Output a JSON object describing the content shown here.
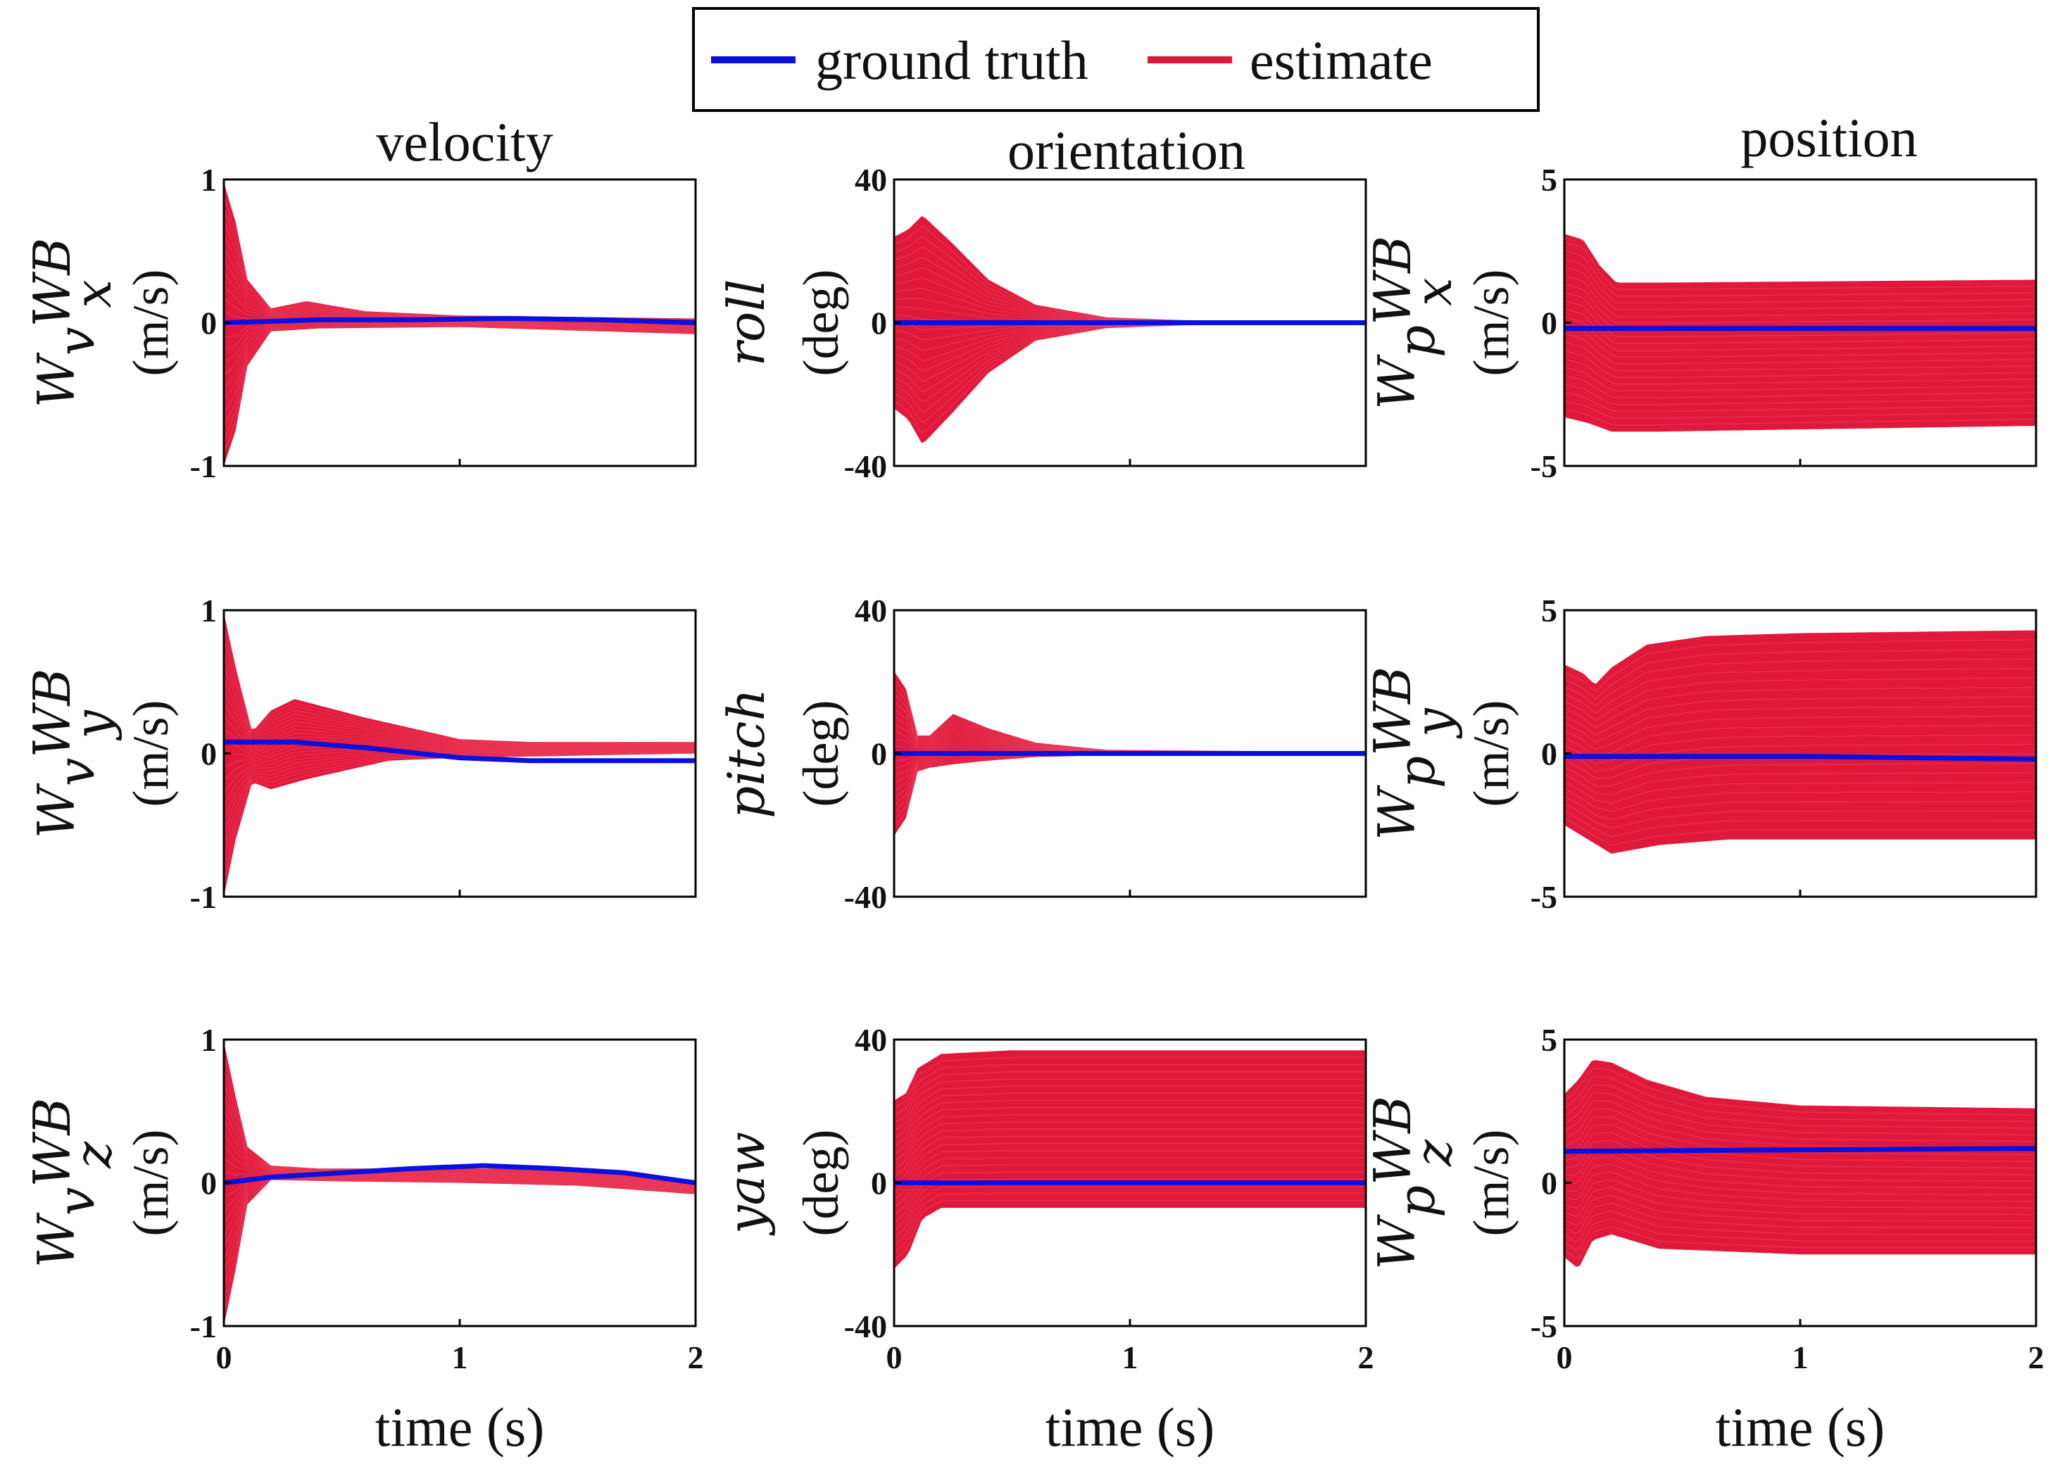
{
  "legend": {
    "ground_truth": "ground truth",
    "estimate": "estimate",
    "colors": {
      "ground_truth": "#0a10e0",
      "estimate": "#e0183c"
    }
  },
  "columns": [
    "velocity",
    "orientation",
    "position"
  ],
  "chart_data": [
    {
      "type": "line",
      "id": "vx",
      "row": 0,
      "col": 0,
      "ylabel_main": "v",
      "ylabel_sub": "x",
      "ylabel_sup": "WB",
      "ylabel_pre": "W",
      "ylabel_unit": "(m/s)",
      "xlim": [
        0,
        2
      ],
      "ylim": [
        -1,
        1
      ],
      "yticks": [
        "1",
        "0",
        "-1"
      ],
      "xticks": [],
      "truth": [
        [
          0,
          0
        ],
        [
          0.2,
          0.01
        ],
        [
          0.4,
          0.02
        ],
        [
          0.8,
          0.02
        ],
        [
          1.2,
          0.03
        ],
        [
          1.6,
          0.02
        ],
        [
          2,
          0.0
        ]
      ],
      "band": {
        "upper": [
          [
            0,
            0.98
          ],
          [
            0.05,
            0.7
          ],
          [
            0.1,
            0.3
          ],
          [
            0.2,
            0.1
          ],
          [
            0.35,
            0.15
          ],
          [
            0.6,
            0.08
          ],
          [
            1.0,
            0.05
          ],
          [
            2,
            0.03
          ]
        ],
        "lower": [
          [
            0,
            -1.0
          ],
          [
            0.05,
            -0.75
          ],
          [
            0.1,
            -0.3
          ],
          [
            0.2,
            -0.06
          ],
          [
            0.4,
            -0.04
          ],
          [
            1.0,
            -0.03
          ],
          [
            2,
            -0.08
          ]
        ]
      }
    },
    {
      "type": "line",
      "id": "roll",
      "row": 0,
      "col": 1,
      "ylabel_main": "roll",
      "ylabel_unit": "(deg)",
      "xlim": [
        0,
        2
      ],
      "ylim": [
        -40,
        40
      ],
      "yticks": [
        "40",
        "0",
        "-40"
      ],
      "xticks": [],
      "truth": [
        [
          0,
          0
        ],
        [
          1,
          0
        ],
        [
          2,
          0
        ]
      ],
      "band": {
        "upper": [
          [
            0,
            24
          ],
          [
            0.06,
            26
          ],
          [
            0.12,
            30
          ],
          [
            0.25,
            22
          ],
          [
            0.4,
            12
          ],
          [
            0.6,
            5
          ],
          [
            0.9,
            1.5
          ],
          [
            1.3,
            0.5
          ],
          [
            2,
            0.3
          ]
        ],
        "lower": [
          [
            0,
            -24
          ],
          [
            0.06,
            -27
          ],
          [
            0.12,
            -34
          ],
          [
            0.25,
            -25
          ],
          [
            0.4,
            -14
          ],
          [
            0.6,
            -5
          ],
          [
            0.9,
            -1.5
          ],
          [
            1.3,
            -0.5
          ],
          [
            2,
            -0.3
          ]
        ]
      }
    },
    {
      "type": "line",
      "id": "px",
      "row": 0,
      "col": 2,
      "ylabel_main": "p",
      "ylabel_sub": "x",
      "ylabel_sup": "WB",
      "ylabel_pre": "W",
      "ylabel_unit": "(m/s)",
      "xlim": [
        0,
        2
      ],
      "ylim": [
        -5,
        5
      ],
      "yticks": [
        "5",
        "0",
        "-5"
      ],
      "xticks": [],
      "truth": [
        [
          0,
          -0.2
        ],
        [
          1,
          -0.2
        ],
        [
          2,
          -0.2
        ]
      ],
      "band": {
        "upper": [
          [
            0,
            3.1
          ],
          [
            0.08,
            2.9
          ],
          [
            0.15,
            2.0
          ],
          [
            0.22,
            1.4
          ],
          [
            0.4,
            1.4
          ],
          [
            2,
            1.5
          ]
        ],
        "lower": [
          [
            0,
            -3.3
          ],
          [
            0.1,
            -3.5
          ],
          [
            0.2,
            -3.8
          ],
          [
            0.4,
            -3.8
          ],
          [
            2,
            -3.6
          ]
        ]
      }
    },
    {
      "type": "line",
      "id": "vy",
      "row": 1,
      "col": 0,
      "ylabel_main": "v",
      "ylabel_sub": "y",
      "ylabel_sup": "WB",
      "ylabel_pre": "W",
      "ylabel_unit": "(m/s)",
      "xlim": [
        0,
        2
      ],
      "ylim": [
        -1,
        1
      ],
      "yticks": [
        "1",
        "0",
        "-1"
      ],
      "xticks": [],
      "truth": [
        [
          0,
          0.08
        ],
        [
          0.3,
          0.08
        ],
        [
          0.6,
          0.04
        ],
        [
          1.0,
          -0.03
        ],
        [
          1.3,
          -0.05
        ],
        [
          1.6,
          -0.05
        ],
        [
          2,
          -0.05
        ]
      ],
      "band": {
        "upper": [
          [
            0,
            0.98
          ],
          [
            0.05,
            0.6
          ],
          [
            0.12,
            0.15
          ],
          [
            0.2,
            0.3
          ],
          [
            0.3,
            0.38
          ],
          [
            0.6,
            0.25
          ],
          [
            1.0,
            0.1
          ],
          [
            1.3,
            0.08
          ],
          [
            2,
            0.08
          ]
        ],
        "lower": [
          [
            0,
            -1.0
          ],
          [
            0.05,
            -0.6
          ],
          [
            0.12,
            -0.2
          ],
          [
            0.2,
            -0.25
          ],
          [
            0.35,
            -0.18
          ],
          [
            0.7,
            -0.05
          ],
          [
            1.0,
            -0.03
          ],
          [
            2,
            0.0
          ]
        ]
      }
    },
    {
      "type": "line",
      "id": "pitch",
      "row": 1,
      "col": 1,
      "ylabel_main": "pitch",
      "ylabel_unit": "(deg)",
      "xlim": [
        0,
        2
      ],
      "ylim": [
        -40,
        40
      ],
      "yticks": [
        "40",
        "0",
        "-40"
      ],
      "xticks": [],
      "truth": [
        [
          0,
          0
        ],
        [
          1,
          0
        ],
        [
          2,
          0
        ]
      ],
      "band": {
        "upper": [
          [
            0,
            23
          ],
          [
            0.05,
            18
          ],
          [
            0.1,
            5
          ],
          [
            0.15,
            5
          ],
          [
            0.25,
            11
          ],
          [
            0.4,
            7
          ],
          [
            0.6,
            3
          ],
          [
            0.9,
            1
          ],
          [
            2,
            0.3
          ]
        ],
        "lower": [
          [
            0,
            -23
          ],
          [
            0.05,
            -18
          ],
          [
            0.1,
            -5
          ],
          [
            0.15,
            -4
          ],
          [
            0.25,
            -3
          ],
          [
            0.4,
            -2
          ],
          [
            0.6,
            -1
          ],
          [
            0.9,
            -0.5
          ],
          [
            2,
            -0.3
          ]
        ]
      }
    },
    {
      "type": "line",
      "id": "py",
      "row": 1,
      "col": 2,
      "ylabel_main": "p",
      "ylabel_sub": "y",
      "ylabel_sup": "WB",
      "ylabel_pre": "W",
      "ylabel_unit": "(m/s)",
      "xlim": [
        0,
        2
      ],
      "ylim": [
        -5,
        5
      ],
      "yticks": [
        "5",
        "0",
        "-5"
      ],
      "xticks": [],
      "truth": [
        [
          0,
          -0.1
        ],
        [
          1,
          -0.1
        ],
        [
          2,
          -0.2
        ]
      ],
      "band": {
        "upper": [
          [
            0,
            3.1
          ],
          [
            0.08,
            2.8
          ],
          [
            0.13,
            2.4
          ],
          [
            0.2,
            3.0
          ],
          [
            0.35,
            3.8
          ],
          [
            0.6,
            4.1
          ],
          [
            1.0,
            4.2
          ],
          [
            2,
            4.3
          ]
        ],
        "lower": [
          [
            0,
            -2.5
          ],
          [
            0.1,
            -3.0
          ],
          [
            0.2,
            -3.5
          ],
          [
            0.4,
            -3.2
          ],
          [
            0.7,
            -3.0
          ],
          [
            2,
            -3.0
          ]
        ]
      }
    },
    {
      "type": "line",
      "id": "vz",
      "row": 2,
      "col": 0,
      "ylabel_main": "v",
      "ylabel_sub": "z",
      "ylabel_sup": "WB",
      "ylabel_pre": "W",
      "ylabel_unit": "(m/s)",
      "xlim": [
        0,
        2
      ],
      "ylim": [
        -1,
        1
      ],
      "yticks": [
        "1",
        "0",
        "-1"
      ],
      "xticks": [
        "0",
        "1",
        "2"
      ],
      "xlabel": "time (s)",
      "truth": [
        [
          0,
          0
        ],
        [
          0.2,
          0.04
        ],
        [
          0.5,
          0.07
        ],
        [
          0.8,
          0.1
        ],
        [
          1.1,
          0.12
        ],
        [
          1.4,
          0.1
        ],
        [
          1.7,
          0.07
        ],
        [
          2,
          0.0
        ]
      ],
      "band": {
        "upper": [
          [
            0,
            0.98
          ],
          [
            0.05,
            0.6
          ],
          [
            0.1,
            0.25
          ],
          [
            0.2,
            0.12
          ],
          [
            0.4,
            0.1
          ],
          [
            0.8,
            0.1
          ],
          [
            1.2,
            0.1
          ],
          [
            1.6,
            0.07
          ],
          [
            2,
            0.0
          ]
        ],
        "lower": [
          [
            0,
            -1.0
          ],
          [
            0.05,
            -0.6
          ],
          [
            0.1,
            -0.15
          ],
          [
            0.2,
            0.02
          ],
          [
            0.5,
            0.01
          ],
          [
            1.0,
            0.0
          ],
          [
            1.5,
            -0.02
          ],
          [
            2,
            -0.08
          ]
        ]
      }
    },
    {
      "type": "line",
      "id": "yaw",
      "row": 2,
      "col": 1,
      "ylabel_main": "yaw",
      "ylabel_unit": "(deg)",
      "xlim": [
        0,
        2
      ],
      "ylim": [
        -40,
        40
      ],
      "yticks": [
        "40",
        "0",
        "-40"
      ],
      "xticks": [
        "0",
        "1",
        "2"
      ],
      "xlabel": "time (s)",
      "truth": [
        [
          0,
          0
        ],
        [
          1,
          0
        ],
        [
          2,
          0
        ]
      ],
      "band": {
        "upper": [
          [
            0,
            23
          ],
          [
            0.05,
            25
          ],
          [
            0.1,
            32
          ],
          [
            0.2,
            36
          ],
          [
            0.5,
            37
          ],
          [
            2,
            37
          ]
        ],
        "lower": [
          [
            0,
            -24
          ],
          [
            0.06,
            -20
          ],
          [
            0.12,
            -10
          ],
          [
            0.2,
            -7
          ],
          [
            0.5,
            -7
          ],
          [
            2,
            -7
          ]
        ]
      }
    },
    {
      "type": "line",
      "id": "pz",
      "row": 2,
      "col": 2,
      "ylabel_main": "p",
      "ylabel_sub": "z",
      "ylabel_sup": "WB",
      "ylabel_pre": "W",
      "ylabel_unit": "(m/s)",
      "xlim": [
        0,
        2
      ],
      "ylim": [
        -5,
        5
      ],
      "yticks": [
        "5",
        "0",
        "-5"
      ],
      "xticks": [
        "0",
        "1",
        "2"
      ],
      "xlabel": "time (s)",
      "truth": [
        [
          0,
          1.1
        ],
        [
          1,
          1.15
        ],
        [
          2,
          1.2
        ]
      ],
      "band": {
        "upper": [
          [
            0,
            3.1
          ],
          [
            0.06,
            3.6
          ],
          [
            0.12,
            4.3
          ],
          [
            0.2,
            4.2
          ],
          [
            0.35,
            3.6
          ],
          [
            0.6,
            3.0
          ],
          [
            1.0,
            2.7
          ],
          [
            2,
            2.6
          ]
        ],
        "lower": [
          [
            0,
            -2.6
          ],
          [
            0.06,
            -3.0
          ],
          [
            0.12,
            -2.0
          ],
          [
            0.2,
            -1.8
          ],
          [
            0.4,
            -2.3
          ],
          [
            1.0,
            -2.5
          ],
          [
            2,
            -2.5
          ]
        ]
      }
    }
  ]
}
